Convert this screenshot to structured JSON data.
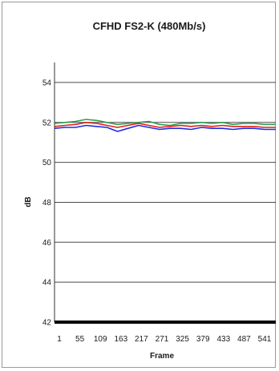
{
  "chart_data": {
    "type": "line",
    "title": "CFHD FS2-K (480Mb/s)",
    "xlabel": "Frame",
    "ylabel": "dB",
    "ylim": [
      42,
      55
    ],
    "y_ticks": [
      42,
      44,
      46,
      48,
      50,
      52,
      54
    ],
    "x_ticks": [
      "1",
      "55",
      "109",
      "163",
      "217",
      "271",
      "325",
      "379",
      "433",
      "487",
      "541"
    ],
    "grid": true,
    "x": [
      1,
      28,
      55,
      82,
      109,
      136,
      163,
      190,
      217,
      244,
      271,
      298,
      325,
      352,
      379,
      406,
      433,
      460,
      487,
      514,
      541,
      570
    ],
    "series": [
      {
        "color": "#2e9e4f",
        "values": [
          51.95,
          52.0,
          52.05,
          52.15,
          52.1,
          52.0,
          51.9,
          51.95,
          52.0,
          52.05,
          51.9,
          51.85,
          51.95,
          51.95,
          52.0,
          51.95,
          52.0,
          51.9,
          51.95,
          51.95,
          51.9,
          51.9
        ]
      },
      {
        "color": "#e0201c",
        "values": [
          51.8,
          51.85,
          51.9,
          52.0,
          51.95,
          51.85,
          51.75,
          51.85,
          51.95,
          51.85,
          51.75,
          51.8,
          51.85,
          51.8,
          51.85,
          51.8,
          51.85,
          51.8,
          51.8,
          51.8,
          51.75,
          51.75
        ]
      },
      {
        "color": "#1f2be0",
        "values": [
          51.7,
          51.75,
          51.75,
          51.85,
          51.8,
          51.75,
          51.55,
          51.7,
          51.85,
          51.75,
          51.65,
          51.7,
          51.7,
          51.65,
          51.75,
          51.7,
          51.7,
          51.65,
          51.7,
          51.7,
          51.65,
          51.65
        ]
      }
    ]
  }
}
